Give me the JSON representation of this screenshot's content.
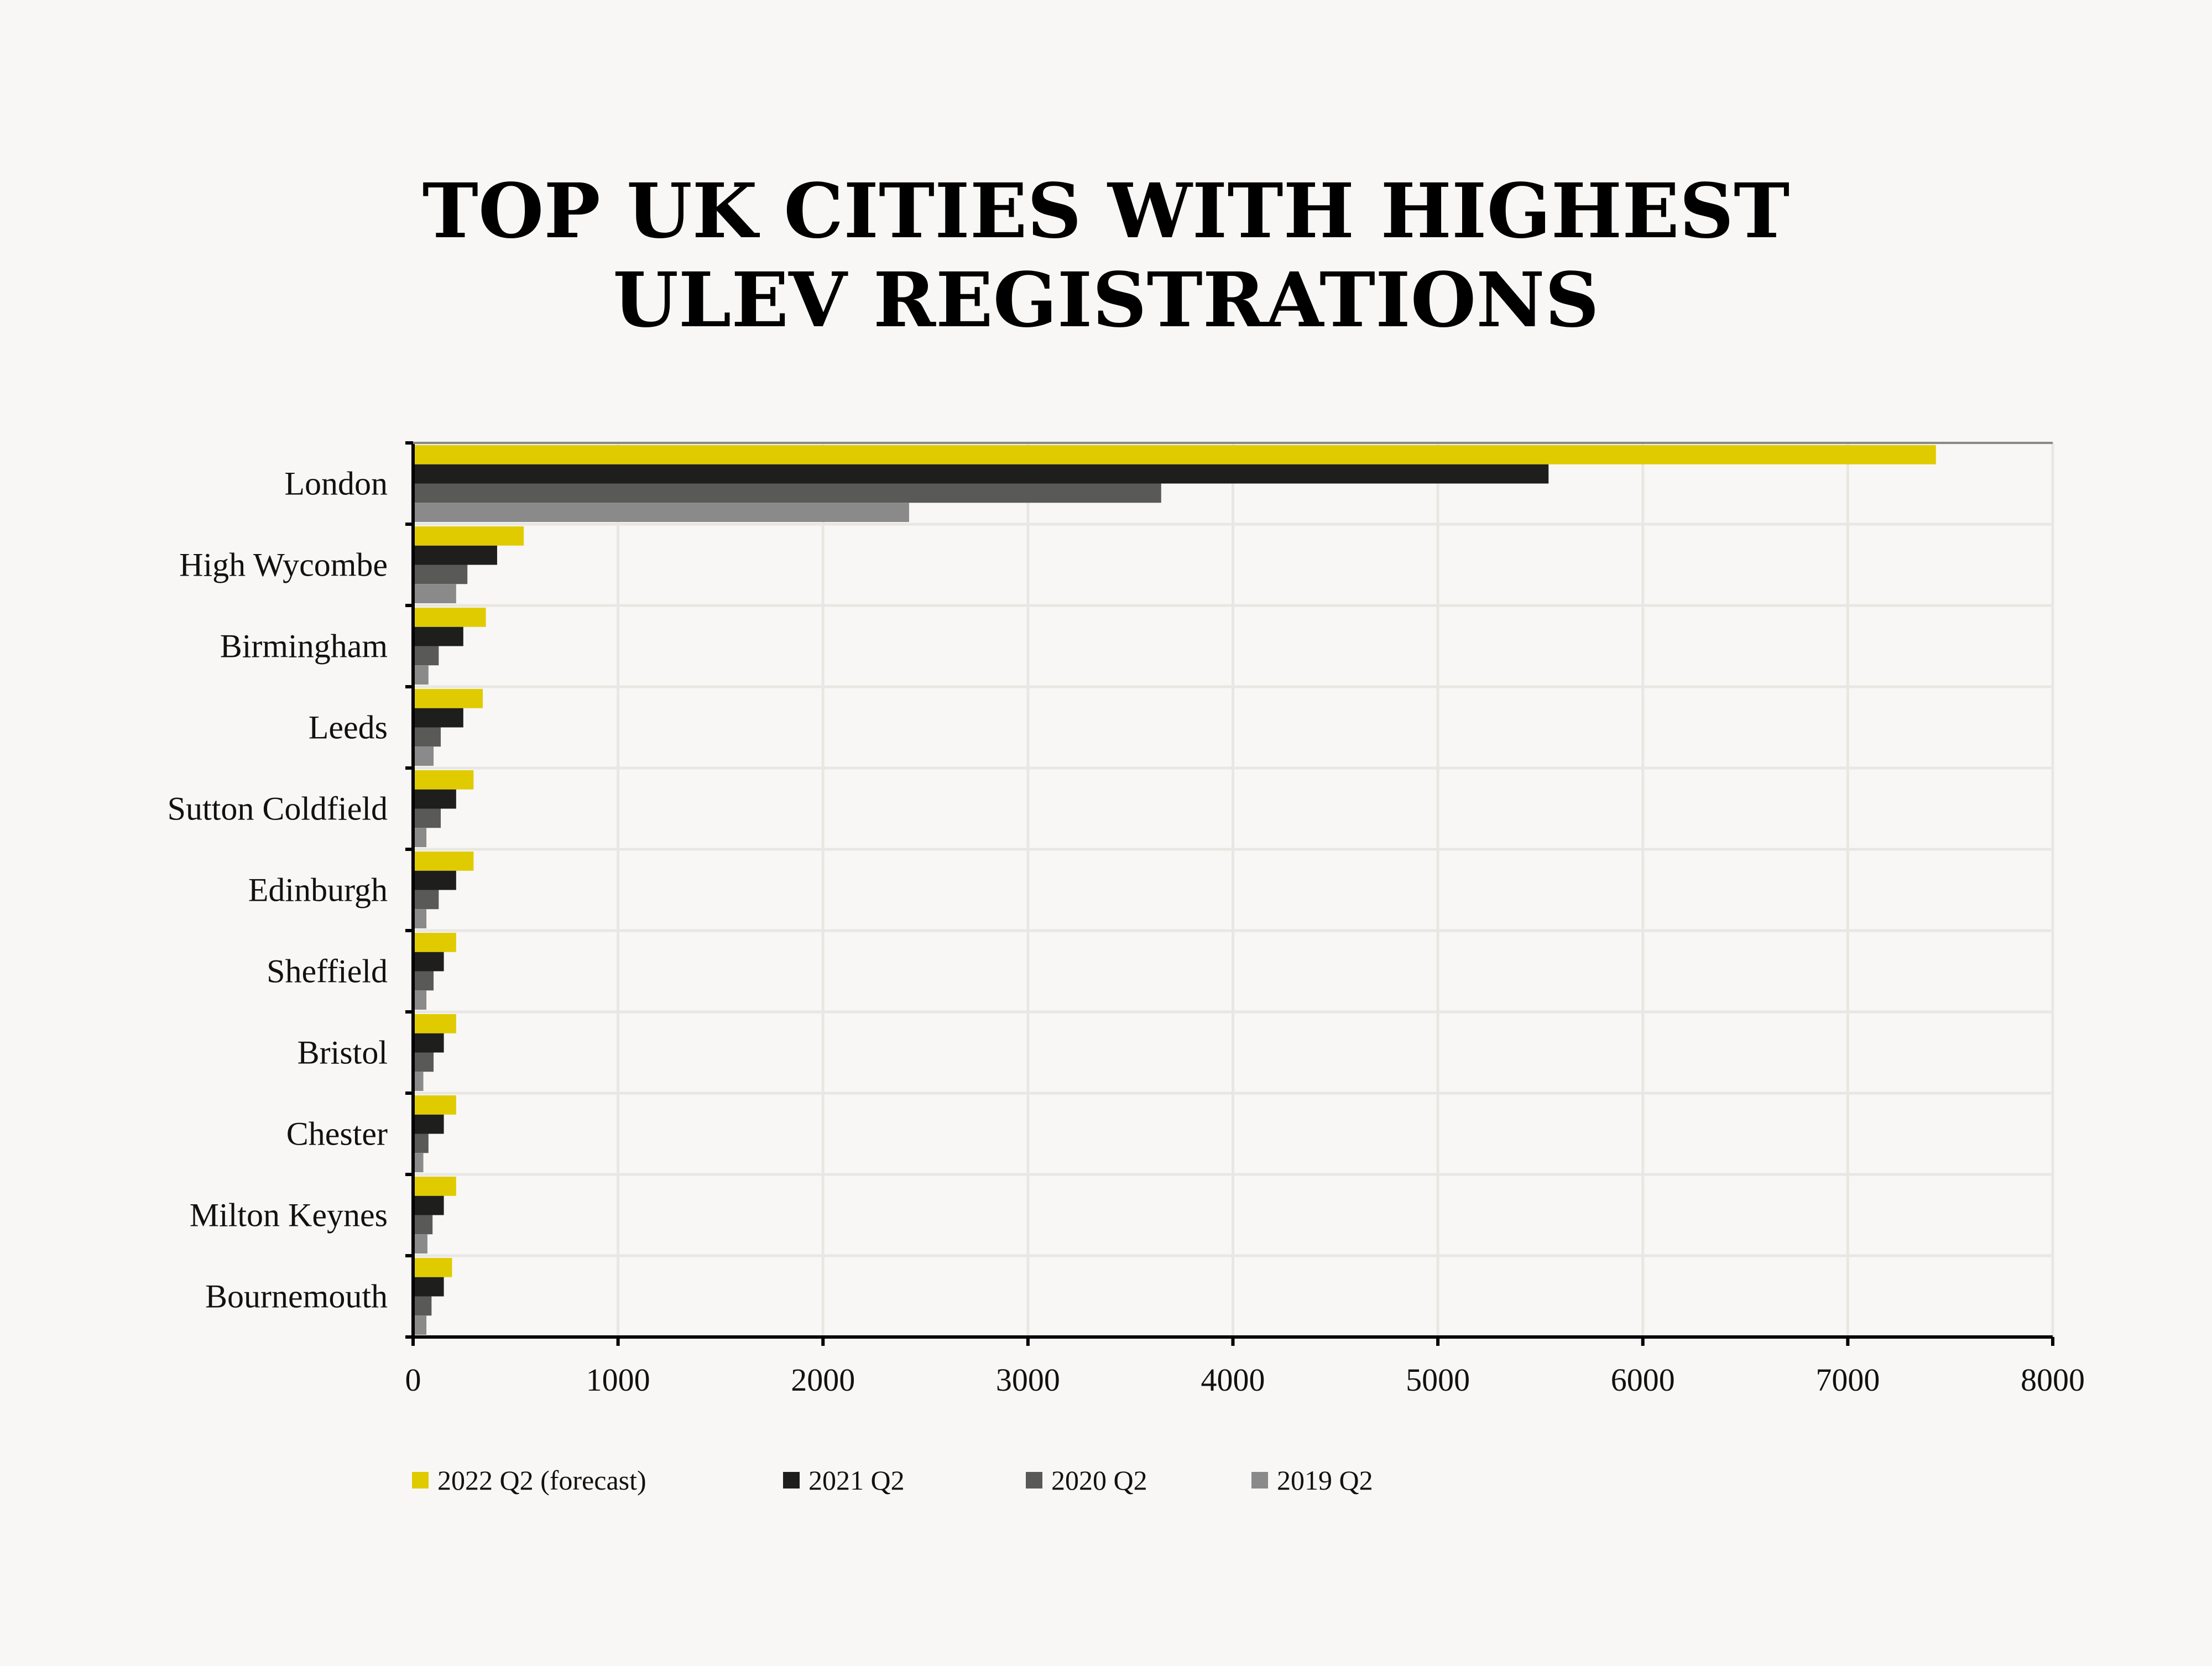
{
  "chart_data": {
    "type": "bar",
    "orientation": "horizontal",
    "title": [
      "TOP UK CITIES WITH HIGHEST",
      "ULEV REGISTRATIONS"
    ],
    "xlabel": "",
    "ylabel": "",
    "xlim": [
      0,
      8000
    ],
    "xticks": [
      "0",
      "1000",
      "2000",
      "3000",
      "4000",
      "5000",
      "6000",
      "7000",
      "8000"
    ],
    "grid": true,
    "legend_position": "bottom-left",
    "categories": [
      "London",
      "High Wycombe",
      "Birmingham",
      "Leeds",
      "Sutton Coldfield",
      "Edinburgh",
      "Sheffield",
      "Bristol",
      "Chester",
      "Milton Keynes",
      "Bournemouth"
    ],
    "series": [
      {
        "name": "2022 Q2 (forecast)",
        "color": "#E0CB00",
        "values": [
          7430,
          540,
          355,
          340,
          295,
          295,
          210,
          210,
          210,
          210,
          190
        ]
      },
      {
        "name": "2021 Q2",
        "color": "#1E1F1D",
        "values": [
          5540,
          410,
          245,
          245,
          210,
          210,
          150,
          150,
          150,
          150,
          150
        ]
      },
      {
        "name": "2020 Q2",
        "color": "#595957",
        "values": [
          3650,
          265,
          125,
          135,
          135,
          125,
          100,
          100,
          75,
          95,
          90
        ]
      },
      {
        "name": "2019 Q2",
        "color": "#8A8A8A",
        "values": [
          2420,
          210,
          75,
          100,
          65,
          65,
          65,
          50,
          50,
          70,
          65
        ]
      }
    ]
  }
}
